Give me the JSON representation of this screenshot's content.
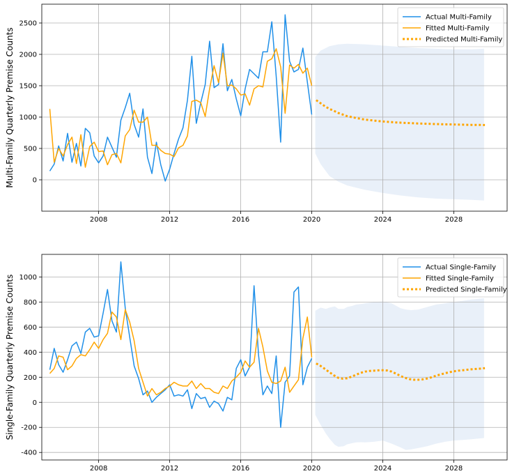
{
  "chart_data": [
    {
      "type": "line",
      "ylabel": "Multi-Family Quarterly Premise Counts",
      "xlabel": "",
      "xlim": [
        2004.8,
        2031.0
      ],
      "ylim": [
        -500,
        2800
      ],
      "xticks": [
        2008,
        2012,
        2016,
        2020,
        2024,
        2028
      ],
      "yticks": [
        0,
        500,
        1000,
        1500,
        2000,
        2500
      ],
      "grid": true,
      "legend_position": "top-right",
      "colors": {
        "actual": "#1f8fe8",
        "fitted": "#ffa500",
        "predicted": "#ffa500",
        "band": "#e9f0f9"
      },
      "series": [
        {
          "name": "Actual Multi-Family",
          "style": "solid",
          "x": [
            2005.25,
            2005.5,
            2005.75,
            2006.0,
            2006.25,
            2006.5,
            2006.75,
            2007.0,
            2007.25,
            2007.5,
            2007.75,
            2008.0,
            2008.25,
            2008.5,
            2008.75,
            2009.0,
            2009.25,
            2009.5,
            2009.75,
            2010.0,
            2010.25,
            2010.5,
            2010.75,
            2011.0,
            2011.25,
            2011.5,
            2011.75,
            2012.0,
            2012.25,
            2012.5,
            2012.75,
            2013.0,
            2013.25,
            2013.5,
            2013.75,
            2014.0,
            2014.25,
            2014.5,
            2014.75,
            2015.0,
            2015.25,
            2015.5,
            2015.75,
            2016.0,
            2016.25,
            2016.5,
            2016.75,
            2017.0,
            2017.25,
            2017.5,
            2017.75,
            2018.0,
            2018.25,
            2018.5,
            2018.75,
            2019.0,
            2019.25,
            2019.5,
            2019.75,
            2020.0
          ],
          "y": [
            140,
            250,
            540,
            300,
            740,
            280,
            580,
            220,
            820,
            750,
            380,
            270,
            380,
            680,
            520,
            360,
            950,
            1150,
            1380,
            880,
            680,
            1130,
            360,
            100,
            600,
            240,
            -20,
            170,
            420,
            650,
            830,
            1270,
            1970,
            900,
            1230,
            1520,
            2210,
            1470,
            1520,
            2170,
            1420,
            1600,
            1290,
            1020,
            1450,
            1760,
            1690,
            1620,
            2040,
            2040,
            2520,
            1650,
            600,
            2630,
            1890,
            1720,
            1760,
            2100,
            1560,
            1040
          ]
        },
        {
          "name": "Fitted Multi-Family",
          "style": "solid",
          "x": [
            2005.25,
            2005.5,
            2005.75,
            2006.0,
            2006.25,
            2006.5,
            2006.75,
            2007.0,
            2007.25,
            2007.5,
            2007.75,
            2008.0,
            2008.25,
            2008.5,
            2008.75,
            2009.0,
            2009.25,
            2009.5,
            2009.75,
            2010.0,
            2010.25,
            2010.5,
            2010.75,
            2011.0,
            2011.25,
            2011.5,
            2011.75,
            2012.0,
            2012.25,
            2012.5,
            2012.75,
            2013.0,
            2013.25,
            2013.5,
            2013.75,
            2014.0,
            2014.25,
            2014.5,
            2014.75,
            2015.0,
            2015.25,
            2015.5,
            2015.75,
            2016.0,
            2016.25,
            2016.5,
            2016.75,
            2017.0,
            2017.25,
            2017.5,
            2017.75,
            2018.0,
            2018.25,
            2018.5,
            2018.75,
            2019.0,
            2019.25,
            2019.5,
            2019.75,
            2020.0
          ],
          "y": [
            1130,
            280,
            500,
            380,
            560,
            680,
            260,
            720,
            200,
            530,
            600,
            450,
            460,
            240,
            400,
            420,
            270,
            700,
            800,
            1110,
            920,
            920,
            1000,
            550,
            550,
            470,
            420,
            410,
            370,
            510,
            550,
            700,
            1250,
            1270,
            1230,
            1010,
            1450,
            1820,
            1550,
            2020,
            1500,
            1510,
            1450,
            1350,
            1370,
            1190,
            1450,
            1500,
            1480,
            1890,
            1930,
            2090,
            1800,
            1060,
            1830,
            1780,
            1840,
            1700,
            1780,
            1500
          ]
        },
        {
          "name": "Predicted Multi-Family",
          "style": "dotted",
          "x": [
            2020.25,
            2020.5,
            2020.75,
            2021.0,
            2021.25,
            2021.5,
            2021.75,
            2022.0,
            2022.25,
            2022.5,
            2022.75,
            2023.0,
            2023.25,
            2023.5,
            2023.75,
            2024.0,
            2024.25,
            2024.5,
            2024.75,
            2025.0,
            2025.25,
            2025.5,
            2025.75,
            2026.0,
            2026.25,
            2026.5,
            2026.75,
            2027.0,
            2027.25,
            2027.5,
            2027.75,
            2028.0,
            2028.25,
            2028.5,
            2028.75,
            2029.0,
            2029.25,
            2029.5,
            2029.75
          ],
          "y": [
            1270,
            1220,
            1170,
            1130,
            1100,
            1065,
            1040,
            1015,
            1000,
            985,
            972,
            960,
            952,
            944,
            937,
            930,
            925,
            920,
            915,
            911,
            907,
            904,
            901,
            898,
            895,
            893,
            891,
            889,
            887,
            885,
            883,
            882,
            880,
            879,
            877,
            876,
            875,
            874,
            873
          ]
        }
      ],
      "band": {
        "x": [
          2020.2,
          2020.5,
          2021.0,
          2021.5,
          2022.0,
          2023.0,
          2024.0,
          2025.0,
          2026.0,
          2027.0,
          2028.0,
          2029.0,
          2029.7
        ],
        "lower": [
          420,
          250,
          60,
          -30,
          -90,
          -160,
          -210,
          -250,
          -280,
          -300,
          -310,
          -320,
          -330
        ],
        "upper": [
          1960,
          2060,
          2130,
          2160,
          2170,
          2160,
          2140,
          2120,
          2100,
          2090,
          2080,
          2080,
          2090
        ]
      }
    },
    {
      "type": "line",
      "ylabel": "Single-Family Quarterly Premise Counts",
      "xlabel": "",
      "xlim": [
        2004.8,
        2031.0
      ],
      "ylim": [
        -460,
        1180
      ],
      "xticks": [
        2008,
        2012,
        2016,
        2020,
        2024,
        2028
      ],
      "yticks": [
        -400,
        -200,
        0,
        200,
        400,
        600,
        800,
        1000
      ],
      "grid": true,
      "legend_position": "top-right",
      "colors": {
        "actual": "#1f8fe8",
        "fitted": "#ffa500",
        "predicted": "#ffa500",
        "band": "#e9f0f9"
      },
      "series": [
        {
          "name": "Actual Single-Family",
          "style": "solid",
          "x": [
            2005.25,
            2005.5,
            2005.75,
            2006.0,
            2006.25,
            2006.5,
            2006.75,
            2007.0,
            2007.25,
            2007.5,
            2007.75,
            2008.0,
            2008.25,
            2008.5,
            2008.75,
            2009.0,
            2009.25,
            2009.5,
            2009.75,
            2010.0,
            2010.25,
            2010.5,
            2010.75,
            2011.0,
            2011.25,
            2011.5,
            2011.75,
            2012.0,
            2012.25,
            2012.5,
            2012.75,
            2013.0,
            2013.25,
            2013.5,
            2013.75,
            2014.0,
            2014.25,
            2014.5,
            2014.75,
            2015.0,
            2015.25,
            2015.5,
            2015.75,
            2016.0,
            2016.25,
            2016.5,
            2016.75,
            2017.0,
            2017.25,
            2017.5,
            2017.75,
            2018.0,
            2018.25,
            2018.5,
            2018.75,
            2019.0,
            2019.25,
            2019.5,
            2019.75,
            2020.0
          ],
          "y": [
            260,
            430,
            300,
            240,
            340,
            450,
            480,
            390,
            560,
            590,
            520,
            530,
            710,
            900,
            650,
            560,
            1120,
            750,
            520,
            290,
            190,
            60,
            90,
            0,
            40,
            70,
            100,
            140,
            50,
            60,
            50,
            100,
            -50,
            70,
            30,
            40,
            -40,
            10,
            -10,
            -70,
            40,
            20,
            270,
            340,
            210,
            280,
            930,
            380,
            60,
            130,
            70,
            370,
            -200,
            160,
            210,
            880,
            920,
            140,
            280,
            350
          ]
        },
        {
          "name": "Fitted Single-Family",
          "style": "solid",
          "x": [
            2005.25,
            2005.5,
            2005.75,
            2006.0,
            2006.25,
            2006.5,
            2006.75,
            2007.0,
            2007.25,
            2007.5,
            2007.75,
            2008.0,
            2008.25,
            2008.5,
            2008.75,
            2009.0,
            2009.25,
            2009.5,
            2009.75,
            2010.0,
            2010.25,
            2010.5,
            2010.75,
            2011.0,
            2011.25,
            2011.5,
            2011.75,
            2012.0,
            2012.25,
            2012.5,
            2012.75,
            2013.0,
            2013.25,
            2013.5,
            2013.75,
            2014.0,
            2014.25,
            2014.5,
            2014.75,
            2015.0,
            2015.25,
            2015.5,
            2015.75,
            2016.0,
            2016.25,
            2016.5,
            2016.75,
            2017.0,
            2017.25,
            2017.5,
            2017.75,
            2018.0,
            2018.25,
            2018.5,
            2018.75,
            2019.0,
            2019.25,
            2019.5,
            2019.75,
            2020.0
          ],
          "y": [
            230,
            270,
            370,
            360,
            260,
            290,
            350,
            380,
            370,
            420,
            480,
            430,
            500,
            550,
            720,
            680,
            500,
            740,
            640,
            490,
            270,
            160,
            50,
            110,
            60,
            80,
            110,
            130,
            160,
            140,
            130,
            130,
            170,
            110,
            150,
            110,
            110,
            80,
            70,
            130,
            110,
            170,
            200,
            240,
            330,
            280,
            320,
            590,
            440,
            250,
            160,
            150,
            170,
            280,
            80,
            130,
            180,
            510,
            680,
            360
          ]
        },
        {
          "name": "Predicted Single-Family",
          "style": "dotted",
          "x": [
            2020.25,
            2020.5,
            2020.75,
            2021.0,
            2021.25,
            2021.5,
            2021.75,
            2022.0,
            2022.25,
            2022.5,
            2022.75,
            2023.0,
            2023.25,
            2023.5,
            2023.75,
            2024.0,
            2024.25,
            2024.5,
            2024.75,
            2025.0,
            2025.25,
            2025.5,
            2025.75,
            2026.0,
            2026.25,
            2026.5,
            2026.75,
            2027.0,
            2027.25,
            2027.5,
            2027.75,
            2028.0,
            2028.25,
            2028.5,
            2028.75,
            2029.0,
            2029.25,
            2029.5,
            2029.75
          ],
          "y": [
            310,
            290,
            265,
            240,
            215,
            195,
            188,
            192,
            205,
            220,
            235,
            245,
            250,
            252,
            255,
            256,
            254,
            245,
            228,
            210,
            195,
            185,
            180,
            180,
            183,
            190,
            200,
            212,
            222,
            232,
            240,
            247,
            252,
            256,
            260,
            263,
            266,
            269,
            272
          ]
        }
      ],
      "band": {
        "x": [
          2020.2,
          2020.5,
          2020.8,
          2021.0,
          2021.3,
          2021.5,
          2021.8,
          2022.0,
          2022.3,
          2022.5,
          2022.8,
          2023.0,
          2023.5,
          2024.0,
          2024.5,
          2025.0,
          2025.3,
          2025.6,
          2026.0,
          2026.5,
          2027.0,
          2027.5,
          2028.0,
          2028.5,
          2029.0,
          2029.7
        ],
        "lower": [
          -100,
          -180,
          -250,
          -290,
          -340,
          -355,
          -350,
          -335,
          -325,
          -320,
          -318,
          -320,
          -315,
          -305,
          -330,
          -360,
          -380,
          -375,
          -365,
          -350,
          -330,
          -315,
          -305,
          -300,
          -295,
          -285
        ],
        "upper": [
          730,
          755,
          745,
          755,
          765,
          745,
          745,
          760,
          770,
          780,
          785,
          790,
          800,
          805,
          790,
          750,
          740,
          735,
          740,
          760,
          780,
          790,
          800,
          810,
          820,
          830
        ]
      }
    }
  ]
}
